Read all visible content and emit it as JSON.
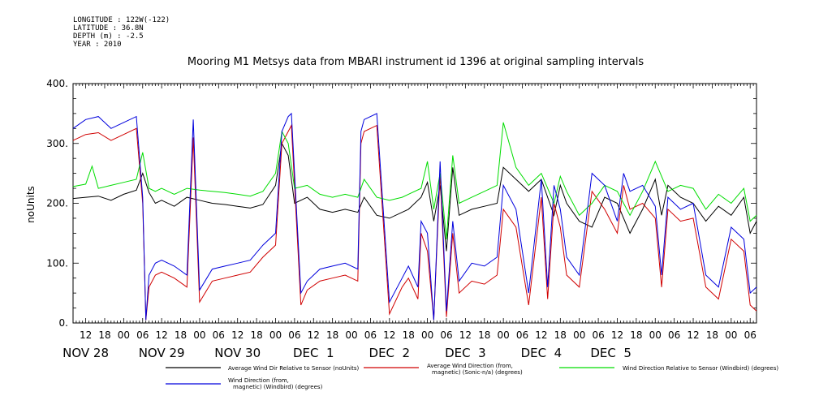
{
  "header": {
    "longitude": "LONGITUDE : 122W(-122)",
    "latitude": "LATITUDE : 36.8N",
    "depth": "DEPTH (m) : -2.5",
    "year": "YEAR : 2010"
  },
  "chart_data": {
    "type": "line",
    "title": "Mooring M1 Metsys data from MBARI instrument id 1396 at original sampling intervals",
    "ylabel": "noUnits",
    "xlabel": "",
    "xlim_hours": [
      -16,
      200
    ],
    "ylim": [
      0,
      400
    ],
    "grid": false,
    "legend_position": "bottom",
    "y_ticks": [
      0,
      100,
      200,
      300,
      400
    ],
    "y_tick_labels": [
      "0.",
      "100.",
      "200.",
      "300.",
      "400."
    ],
    "hour_ticks": [
      {
        "h": -12,
        "label": "12"
      },
      {
        "h": -6,
        "label": "18"
      },
      {
        "h": 0,
        "label": "00"
      },
      {
        "h": 6,
        "label": "06"
      },
      {
        "h": 12,
        "label": "12"
      },
      {
        "h": 18,
        "label": "18"
      },
      {
        "h": 24,
        "label": "00"
      },
      {
        "h": 30,
        "label": "06"
      },
      {
        "h": 36,
        "label": "12"
      },
      {
        "h": 42,
        "label": "18"
      },
      {
        "h": 48,
        "label": "00"
      },
      {
        "h": 54,
        "label": "06"
      },
      {
        "h": 60,
        "label": "12"
      },
      {
        "h": 66,
        "label": "18"
      },
      {
        "h": 72,
        "label": "00"
      },
      {
        "h": 78,
        "label": "06"
      },
      {
        "h": 84,
        "label": "12"
      },
      {
        "h": 90,
        "label": "18"
      },
      {
        "h": 96,
        "label": "00"
      },
      {
        "h": 102,
        "label": "06"
      },
      {
        "h": 108,
        "label": "12"
      },
      {
        "h": 114,
        "label": "18"
      },
      {
        "h": 120,
        "label": "00"
      },
      {
        "h": 126,
        "label": "06"
      },
      {
        "h": 132,
        "label": "12"
      },
      {
        "h": 138,
        "label": "18"
      },
      {
        "h": 144,
        "label": "00"
      },
      {
        "h": 150,
        "label": "06"
      },
      {
        "h": 156,
        "label": "12"
      },
      {
        "h": 162,
        "label": "18"
      },
      {
        "h": 168,
        "label": "00"
      },
      {
        "h": 174,
        "label": "06"
      },
      {
        "h": 180,
        "label": "12"
      },
      {
        "h": 186,
        "label": "18"
      },
      {
        "h": 192,
        "label": "00"
      },
      {
        "h": 198,
        "label": "06"
      }
    ],
    "day_labels": [
      {
        "h": -12,
        "label": "NOV 28"
      },
      {
        "h": 12,
        "label": "NOV 29"
      },
      {
        "h": 36,
        "label": "NOV 30"
      },
      {
        "h": 60,
        "label": "DEC  1"
      },
      {
        "h": 84,
        "label": "DEC  2"
      },
      {
        "h": 108,
        "label": "DEC  3"
      },
      {
        "h": 132,
        "label": "DEC  4"
      },
      {
        "h": 154,
        "label": "DEC  5"
      }
    ],
    "series": [
      {
        "name": "Average Wind Dir Relative to Sensor (noUnits)",
        "color": "#000000",
        "x": [
          -16,
          -12,
          -8,
          -4,
          0,
          4,
          6,
          8,
          10,
          12,
          16,
          20,
          24,
          28,
          32,
          36,
          40,
          44,
          48,
          50,
          52,
          54,
          58,
          62,
          66,
          70,
          74,
          76,
          80,
          84,
          88,
          90,
          94,
          96,
          98,
          100,
          102,
          104,
          106,
          110,
          114,
          118,
          120,
          124,
          128,
          132,
          136,
          138,
          140,
          144,
          148,
          152,
          156,
          160,
          164,
          168,
          170,
          172,
          176,
          180,
          184,
          188,
          192,
          196,
          198,
          200
        ],
        "y": [
          208,
          210,
          212,
          205,
          215,
          222,
          250,
          218,
          200,
          205,
          195,
          210,
          205,
          200,
          198,
          195,
          192,
          198,
          230,
          300,
          280,
          200,
          210,
          190,
          185,
          190,
          185,
          210,
          180,
          175,
          185,
          190,
          210,
          235,
          170,
          230,
          120,
          260,
          180,
          190,
          195,
          200,
          260,
          240,
          220,
          240,
          180,
          230,
          200,
          170,
          160,
          210,
          200,
          150,
          190,
          240,
          180,
          230,
          210,
          200,
          170,
          195,
          180,
          210,
          150,
          170
        ]
      },
      {
        "name": "Average Wind Direction (from, magnetic) (Sonic-n/a) (degrees)",
        "color": "#d00000",
        "x": [
          -16,
          -12,
          -8,
          -4,
          0,
          4,
          6,
          7,
          8,
          10,
          12,
          16,
          20,
          22,
          24,
          28,
          32,
          36,
          40,
          44,
          48,
          50,
          52,
          53,
          56,
          58,
          62,
          66,
          70,
          74,
          75,
          76,
          80,
          84,
          88,
          90,
          93,
          94,
          96,
          98,
          100,
          102,
          104,
          106,
          110,
          114,
          118,
          120,
          124,
          128,
          132,
          134,
          136,
          138,
          140,
          144,
          148,
          152,
          156,
          158,
          160,
          164,
          168,
          170,
          172,
          176,
          180,
          184,
          188,
          192,
          196,
          198,
          200
        ],
        "y": [
          305,
          315,
          318,
          305,
          315,
          325,
          200,
          5,
          60,
          80,
          85,
          75,
          60,
          310,
          35,
          70,
          75,
          80,
          85,
          110,
          130,
          300,
          320,
          330,
          30,
          55,
          70,
          75,
          80,
          70,
          300,
          320,
          330,
          15,
          60,
          75,
          40,
          150,
          120,
          5,
          250,
          10,
          150,
          50,
          70,
          65,
          80,
          190,
          160,
          30,
          210,
          40,
          200,
          160,
          80,
          60,
          220,
          190,
          150,
          230,
          190,
          200,
          175,
          60,
          190,
          170,
          175,
          60,
          40,
          140,
          120,
          30,
          20
        ]
      },
      {
        "name": "Wind Direction Relative to Sensor (Windbird) (degrees)",
        "color": "#00dd00",
        "x": [
          -16,
          -12,
          -10,
          -8,
          -4,
          0,
          4,
          6,
          8,
          10,
          12,
          16,
          20,
          24,
          28,
          32,
          36,
          40,
          44,
          48,
          50,
          52,
          54,
          58,
          62,
          66,
          70,
          74,
          76,
          80,
          84,
          88,
          90,
          94,
          96,
          98,
          100,
          102,
          104,
          106,
          110,
          114,
          118,
          120,
          124,
          128,
          132,
          136,
          138,
          140,
          144,
          148,
          152,
          156,
          160,
          164,
          168,
          172,
          176,
          180,
          184,
          188,
          192,
          196,
          198,
          200
        ],
        "y": [
          228,
          232,
          262,
          225,
          230,
          235,
          240,
          285,
          225,
          220,
          225,
          215,
          225,
          222,
          220,
          218,
          215,
          212,
          220,
          250,
          320,
          300,
          225,
          230,
          215,
          210,
          215,
          210,
          240,
          210,
          205,
          210,
          215,
          225,
          270,
          190,
          250,
          140,
          280,
          200,
          210,
          220,
          230,
          335,
          260,
          230,
          250,
          200,
          245,
          220,
          180,
          200,
          230,
          220,
          180,
          220,
          270,
          220,
          230,
          225,
          190,
          215,
          200,
          225,
          170,
          180
        ]
      },
      {
        "name": "Wind Direction (from, magnetic) (Windbird) (degrees)",
        "color": "#0000dd",
        "x": [
          -16,
          -12,
          -8,
          -4,
          0,
          4,
          6,
          7,
          8,
          10,
          12,
          16,
          20,
          22,
          24,
          28,
          32,
          36,
          40,
          44,
          48,
          50,
          52,
          53,
          56,
          58,
          62,
          66,
          70,
          74,
          75,
          76,
          80,
          84,
          88,
          90,
          93,
          94,
          96,
          98,
          100,
          102,
          104,
          106,
          110,
          114,
          118,
          120,
          124,
          128,
          132,
          134,
          136,
          138,
          140,
          144,
          148,
          152,
          156,
          158,
          160,
          164,
          168,
          170,
          172,
          176,
          180,
          184,
          188,
          192,
          196,
          198,
          200
        ],
        "y": [
          325,
          340,
          345,
          325,
          335,
          345,
          210,
          5,
          80,
          100,
          105,
          95,
          80,
          340,
          55,
          90,
          95,
          100,
          105,
          130,
          150,
          320,
          345,
          350,
          50,
          70,
          90,
          95,
          100,
          90,
          320,
          340,
          350,
          35,
          75,
          95,
          60,
          170,
          150,
          5,
          270,
          20,
          170,
          70,
          100,
          95,
          110,
          230,
          190,
          50,
          240,
          60,
          230,
          190,
          110,
          80,
          250,
          230,
          170,
          250,
          220,
          230,
          195,
          80,
          210,
          190,
          200,
          80,
          60,
          160,
          140,
          50,
          60
        ]
      }
    ]
  }
}
